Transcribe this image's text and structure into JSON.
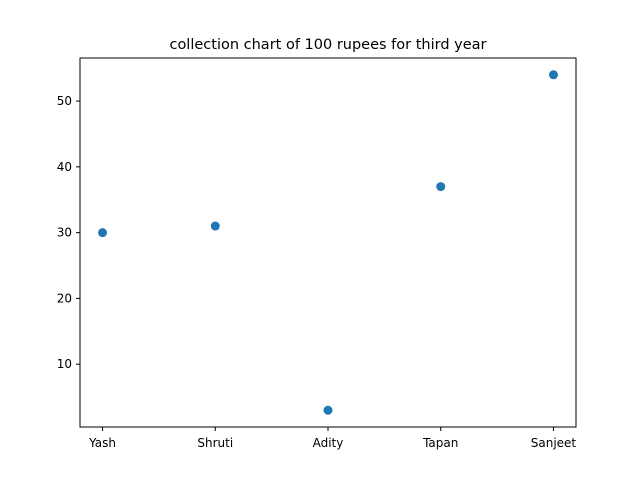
{
  "chart_data": {
    "type": "scatter",
    "title": "collection chart of 100 rupees for third year",
    "xlabel": "",
    "ylabel": "",
    "categories": [
      "Yash",
      "Shruti",
      "Adity",
      "Tapan",
      "Sanjeet"
    ],
    "values": [
      30,
      31,
      3,
      37,
      54
    ],
    "ylim": [
      0.45,
      56.55
    ],
    "yticks": [
      10,
      20,
      30,
      40,
      50
    ],
    "grid": false,
    "marker_color": "#1f77b4"
  }
}
